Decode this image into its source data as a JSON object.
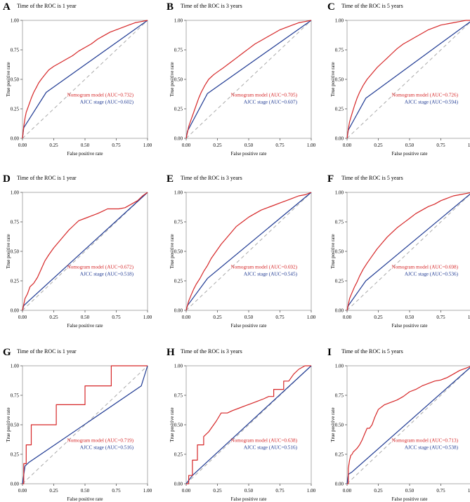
{
  "figure": {
    "title": "ROC curves panel figure"
  },
  "colors": {
    "nomogram": "#d62728",
    "ajcc": "#1f3a93",
    "diagonal": "#aaaaaa",
    "frame": "#999999"
  },
  "chart_data": [
    {
      "type": "line",
      "panel_label": "A",
      "title": "Time of the ROC is  1 year",
      "xlabel": "False positive rate",
      "ylabel": "True positive rate",
      "xlim": [
        0,
        1
      ],
      "ylim": [
        0,
        1
      ],
      "x_ticks": [
        "0.00",
        "0.25",
        "0.50",
        "0.75",
        "1.00"
      ],
      "y_ticks": [
        "0.00",
        "0.25",
        "0.50",
        "0.75",
        "1.00"
      ],
      "legend": [
        "Nomogram model (AUC=0.732)",
        "AJCC stage (AUC=0.602)"
      ],
      "series": [
        {
          "name": "Nomogram model",
          "auc": 0.732,
          "x": [
            0,
            0.01,
            0.02,
            0.03,
            0.05,
            0.07,
            0.09,
            0.11,
            0.13,
            0.15,
            0.18,
            0.21,
            0.25,
            0.3,
            0.35,
            0.4,
            0.45,
            0.5,
            0.55,
            0.6,
            0.65,
            0.7,
            0.75,
            0.8,
            0.85,
            0.9,
            0.95,
            1
          ],
          "y": [
            0,
            0.1,
            0.17,
            0.22,
            0.28,
            0.34,
            0.39,
            0.43,
            0.47,
            0.5,
            0.54,
            0.58,
            0.61,
            0.64,
            0.67,
            0.7,
            0.74,
            0.77,
            0.8,
            0.84,
            0.87,
            0.9,
            0.92,
            0.94,
            0.96,
            0.98,
            0.99,
            1
          ]
        },
        {
          "name": "AJCC stage",
          "auc": 0.602,
          "x": [
            0,
            0.01,
            0.19,
            1
          ],
          "y": [
            0,
            0.09,
            0.39,
            1
          ]
        }
      ]
    },
    {
      "type": "line",
      "panel_label": "B",
      "title": "Time of the ROC is  3 years",
      "xlabel": "False positive rate",
      "ylabel": "True positive rate",
      "xlim": [
        0,
        1
      ],
      "ylim": [
        0,
        1
      ],
      "x_ticks": [
        "0.00",
        "0.25",
        "0.50",
        "0.75",
        "1.00"
      ],
      "y_ticks": [
        "0.00",
        "0.25",
        "0.50",
        "0.75",
        "1.00"
      ],
      "legend": [
        "Nomogram model (AUC=0.705)",
        "AJCC stage (AUC=0.607)"
      ],
      "series": [
        {
          "name": "Nomogram model",
          "auc": 0.705,
          "x": [
            0,
            0.01,
            0.02,
            0.04,
            0.06,
            0.08,
            0.1,
            0.12,
            0.15,
            0.18,
            0.22,
            0.26,
            0.3,
            0.35,
            0.4,
            0.45,
            0.5,
            0.55,
            0.6,
            0.65,
            0.7,
            0.75,
            0.8,
            0.85,
            0.9,
            0.95,
            1
          ],
          "y": [
            0,
            0.05,
            0.1,
            0.16,
            0.22,
            0.28,
            0.34,
            0.39,
            0.45,
            0.5,
            0.54,
            0.57,
            0.6,
            0.64,
            0.68,
            0.72,
            0.76,
            0.8,
            0.83,
            0.86,
            0.89,
            0.92,
            0.94,
            0.96,
            0.98,
            0.99,
            1
          ]
        },
        {
          "name": "AJCC stage",
          "auc": 0.607,
          "x": [
            0,
            0.01,
            0.17,
            1
          ],
          "y": [
            0,
            0.06,
            0.38,
            1
          ]
        }
      ]
    },
    {
      "type": "line",
      "panel_label": "C",
      "title": "Time of the ROC is  5 years",
      "xlabel": "False positive rate",
      "ylabel": "True positive rate",
      "xlim": [
        0,
        1
      ],
      "ylim": [
        0,
        1
      ],
      "x_ticks": [
        "0.00",
        "0.25",
        "0.50",
        "0.75",
        "1.00"
      ],
      "y_ticks": [
        "0.00",
        "0.25",
        "0.50",
        "0.75",
        "1.00"
      ],
      "legend": [
        "Nomogram model (AUC=0.726)",
        "AJCC stage (AUC=0.594)"
      ],
      "series": [
        {
          "name": "Nomogram model",
          "auc": 0.726,
          "x": [
            0,
            0.01,
            0.02,
            0.04,
            0.06,
            0.08,
            0.1,
            0.13,
            0.16,
            0.2,
            0.24,
            0.28,
            0.32,
            0.36,
            0.4,
            0.45,
            0.5,
            0.55,
            0.6,
            0.65,
            0.7,
            0.75,
            0.8,
            0.85,
            0.9,
            0.95,
            1
          ],
          "y": [
            0,
            0.08,
            0.14,
            0.21,
            0.28,
            0.34,
            0.39,
            0.45,
            0.5,
            0.55,
            0.6,
            0.64,
            0.68,
            0.72,
            0.76,
            0.8,
            0.83,
            0.86,
            0.89,
            0.92,
            0.94,
            0.96,
            0.97,
            0.98,
            0.99,
            1,
            1
          ]
        },
        {
          "name": "AJCC stage",
          "auc": 0.594,
          "x": [
            0,
            0.01,
            0.15,
            1
          ],
          "y": [
            0,
            0.07,
            0.34,
            1
          ]
        }
      ]
    },
    {
      "type": "line",
      "panel_label": "D",
      "title": "Time of the ROC is  1 year",
      "xlabel": "False positive rate",
      "ylabel": "True positive rate",
      "xlim": [
        0,
        1
      ],
      "ylim": [
        0,
        1
      ],
      "x_ticks": [
        "0.00",
        "0.25",
        "0.50",
        "0.75",
        "1.00"
      ],
      "y_ticks": [
        "0.00",
        "0.25",
        "0.50",
        "0.75",
        "1.00"
      ],
      "legend": [
        "Nomogram model (AUC=0.672)",
        "AJCC stage (AUC=0.518)"
      ],
      "series": [
        {
          "name": "Nomogram model",
          "auc": 0.672,
          "x": [
            0,
            0.01,
            0.02,
            0.04,
            0.06,
            0.09,
            0.12,
            0.15,
            0.18,
            0.21,
            0.25,
            0.29,
            0.33,
            0.37,
            0.41,
            0.45,
            0.5,
            0.55,
            0.6,
            0.64,
            0.68,
            0.72,
            0.77,
            0.82,
            0.87,
            0.92,
            0.96,
            1
          ],
          "y": [
            0,
            0.05,
            0.1,
            0.14,
            0.2,
            0.23,
            0.28,
            0.35,
            0.42,
            0.47,
            0.53,
            0.58,
            0.63,
            0.68,
            0.72,
            0.76,
            0.78,
            0.8,
            0.82,
            0.84,
            0.86,
            0.86,
            0.86,
            0.87,
            0.9,
            0.93,
            0.97,
            1
          ]
        },
        {
          "name": "AJCC stage",
          "auc": 0.518,
          "x": [
            0,
            0.01,
            0.06,
            1
          ],
          "y": [
            0,
            0.04,
            0.09,
            1
          ]
        }
      ]
    },
    {
      "type": "line",
      "panel_label": "E",
      "title": "Time of the ROC is  3 years",
      "xlabel": "False positive rate",
      "ylabel": "True positive rate",
      "xlim": [
        0,
        1
      ],
      "ylim": [
        0,
        1
      ],
      "x_ticks": [
        "0.00",
        "0.25",
        "0.50",
        "0.75",
        "1.00"
      ],
      "y_ticks": [
        "0.00",
        "0.25",
        "0.50",
        "0.75",
        "1.00"
      ],
      "legend": [
        "Nomogram model (AUC=0.692)",
        "AJCC stage (AUC=0.545)"
      ],
      "series": [
        {
          "name": "Nomogram model",
          "auc": 0.692,
          "x": [
            0,
            0.01,
            0.02,
            0.04,
            0.06,
            0.08,
            0.11,
            0.14,
            0.17,
            0.2,
            0.24,
            0.28,
            0.32,
            0.36,
            0.4,
            0.45,
            0.5,
            0.55,
            0.6,
            0.65,
            0.7,
            0.75,
            0.8,
            0.85,
            0.9,
            0.95,
            1
          ],
          "y": [
            0,
            0.04,
            0.08,
            0.13,
            0.18,
            0.22,
            0.27,
            0.33,
            0.38,
            0.44,
            0.5,
            0.56,
            0.61,
            0.66,
            0.71,
            0.75,
            0.79,
            0.82,
            0.85,
            0.87,
            0.89,
            0.91,
            0.93,
            0.95,
            0.97,
            0.98,
            1
          ]
        },
        {
          "name": "AJCC stage",
          "auc": 0.545,
          "x": [
            0,
            0.01,
            0.17,
            1
          ],
          "y": [
            0,
            0.04,
            0.27,
            1
          ]
        }
      ]
    },
    {
      "type": "line",
      "panel_label": "F",
      "title": "Time of the ROC is  5 years",
      "xlabel": "False positive rate",
      "ylabel": "True positive rate",
      "xlim": [
        0,
        1
      ],
      "ylim": [
        0,
        1
      ],
      "x_ticks": [
        "0.00",
        "0.25",
        "0.50",
        "0.75",
        "1.00"
      ],
      "y_ticks": [
        "0.00",
        "0.25",
        "0.50",
        "0.75",
        "1.00"
      ],
      "legend": [
        "Nomogram model (AUC=0.698)",
        "AJCC stage (AUC=0.536)"
      ],
      "series": [
        {
          "name": "Nomogram model",
          "auc": 0.698,
          "x": [
            0,
            0.01,
            0.02,
            0.04,
            0.06,
            0.08,
            0.1,
            0.13,
            0.16,
            0.2,
            0.24,
            0.28,
            0.32,
            0.36,
            0.4,
            0.45,
            0.5,
            0.55,
            0.6,
            0.65,
            0.7,
            0.75,
            0.8,
            0.85,
            0.9,
            0.95,
            1
          ],
          "y": [
            0,
            0.05,
            0.1,
            0.15,
            0.2,
            0.24,
            0.29,
            0.35,
            0.4,
            0.46,
            0.52,
            0.57,
            0.62,
            0.66,
            0.7,
            0.74,
            0.78,
            0.82,
            0.85,
            0.88,
            0.9,
            0.93,
            0.95,
            0.97,
            0.98,
            0.99,
            1
          ]
        },
        {
          "name": "AJCC stage",
          "auc": 0.536,
          "x": [
            0,
            0.01,
            0.15,
            1
          ],
          "y": [
            0,
            0.04,
            0.25,
            1
          ]
        }
      ]
    },
    {
      "type": "line",
      "panel_label": "G",
      "title": "Time of the ROC is  1 year",
      "xlabel": "False positive rate",
      "ylabel": "True positive rate",
      "xlim": [
        0,
        1
      ],
      "ylim": [
        0,
        1
      ],
      "x_ticks": [
        "0.00",
        "0.25",
        "0.50",
        "0.75",
        "1.00"
      ],
      "y_ticks": [
        "0.00",
        "0.25",
        "0.50",
        "0.75",
        "1.00"
      ],
      "legend": [
        "Nomogram model (AUC=0.719)",
        "AJCC stage (AUC=0.516)"
      ],
      "series": [
        {
          "name": "Nomogram model",
          "auc": 0.719,
          "x": [
            0,
            0.01,
            0.01,
            0.03,
            0.03,
            0.05,
            0.05,
            0.07,
            0.07,
            0.27,
            0.27,
            0.32,
            0.32,
            0.5,
            0.5,
            0.71,
            0.71,
            0.95,
            1
          ],
          "y": [
            0,
            0,
            0.17,
            0.17,
            0.33,
            0.33,
            0.33,
            0.33,
            0.5,
            0.5,
            0.67,
            0.67,
            0.67,
            0.67,
            0.83,
            0.83,
            1,
            1,
            1
          ]
        },
        {
          "name": "AJCC stage",
          "auc": 0.516,
          "x": [
            0,
            0.02,
            0.05,
            0.95,
            1
          ],
          "y": [
            0,
            0.15,
            0.18,
            0.83,
            1
          ]
        }
      ]
    },
    {
      "type": "line",
      "panel_label": "H",
      "title": "Time of the ROC is  3 years",
      "xlabel": "False positive rate",
      "ylabel": "True positive rate",
      "xlim": [
        0,
        1
      ],
      "ylim": [
        0,
        1
      ],
      "x_ticks": [
        "0.00",
        "0.25",
        "0.50",
        "0.75",
        "1.00"
      ],
      "y_ticks": [
        "0.00",
        "0.25",
        "0.50",
        "0.75",
        "1.00"
      ],
      "legend": [
        "Nomogram model (AUC=0.638)",
        "AJCC stage (AUC=0.516)"
      ],
      "series": [
        {
          "name": "Nomogram model",
          "auc": 0.638,
          "x": [
            0,
            0.02,
            0.02,
            0.05,
            0.05,
            0.09,
            0.09,
            0.14,
            0.14,
            0.18,
            0.2,
            0.24,
            0.28,
            0.33,
            0.37,
            0.42,
            0.47,
            0.52,
            0.57,
            0.62,
            0.66,
            0.7,
            0.7,
            0.75,
            0.78,
            0.78,
            0.82,
            0.86,
            0.9,
            0.95,
            1
          ],
          "y": [
            0,
            0,
            0.07,
            0.07,
            0.2,
            0.2,
            0.33,
            0.33,
            0.4,
            0.44,
            0.47,
            0.53,
            0.6,
            0.6,
            0.62,
            0.64,
            0.66,
            0.68,
            0.7,
            0.72,
            0.74,
            0.74,
            0.8,
            0.8,
            0.8,
            0.87,
            0.87,
            0.93,
            0.97,
            1,
            1
          ]
        },
        {
          "name": "AJCC stage",
          "auc": 0.516,
          "x": [
            0,
            0.05,
            1
          ],
          "y": [
            0,
            0.07,
            1
          ]
        }
      ]
    },
    {
      "type": "line",
      "panel_label": "I",
      "title": "Time of the ROC is  5 years",
      "xlabel": "False positive rate",
      "ylabel": "True positive rate",
      "xlim": [
        0,
        1
      ],
      "ylim": [
        0,
        1
      ],
      "x_ticks": [
        "0.00",
        "0.25",
        "0.50",
        "0.75",
        "1.00"
      ],
      "y_ticks": [
        "0.00",
        "0.25",
        "0.50",
        "0.75",
        "1.00"
      ],
      "legend": [
        "Nomogram model (AUC=0.713)",
        "AJCC stage (AUC=0.538)"
      ],
      "series": [
        {
          "name": "Nomogram model",
          "auc": 0.713,
          "x": [
            0,
            0.01,
            0.01,
            0.02,
            0.03,
            0.04,
            0.05,
            0.06,
            0.08,
            0.1,
            0.12,
            0.14,
            0.16,
            0.18,
            0.2,
            0.22,
            0.25,
            0.3,
            0.35,
            0.4,
            0.45,
            0.5,
            0.55,
            0.6,
            0.65,
            0.7,
            0.75,
            0.8,
            0.85,
            0.9,
            0.95,
            1
          ],
          "y": [
            0,
            0,
            0.13,
            0.2,
            0.24,
            0.25,
            0.27,
            0.28,
            0.3,
            0.33,
            0.37,
            0.42,
            0.47,
            0.47,
            0.5,
            0.56,
            0.63,
            0.67,
            0.69,
            0.71,
            0.74,
            0.78,
            0.8,
            0.83,
            0.85,
            0.87,
            0.88,
            0.9,
            0.93,
            0.96,
            0.98,
            1
          ]
        },
        {
          "name": "AJCC stage",
          "auc": 0.538,
          "x": [
            0,
            0.01,
            0.04,
            1
          ],
          "y": [
            0,
            0.08,
            0.1,
            1
          ]
        }
      ]
    }
  ]
}
